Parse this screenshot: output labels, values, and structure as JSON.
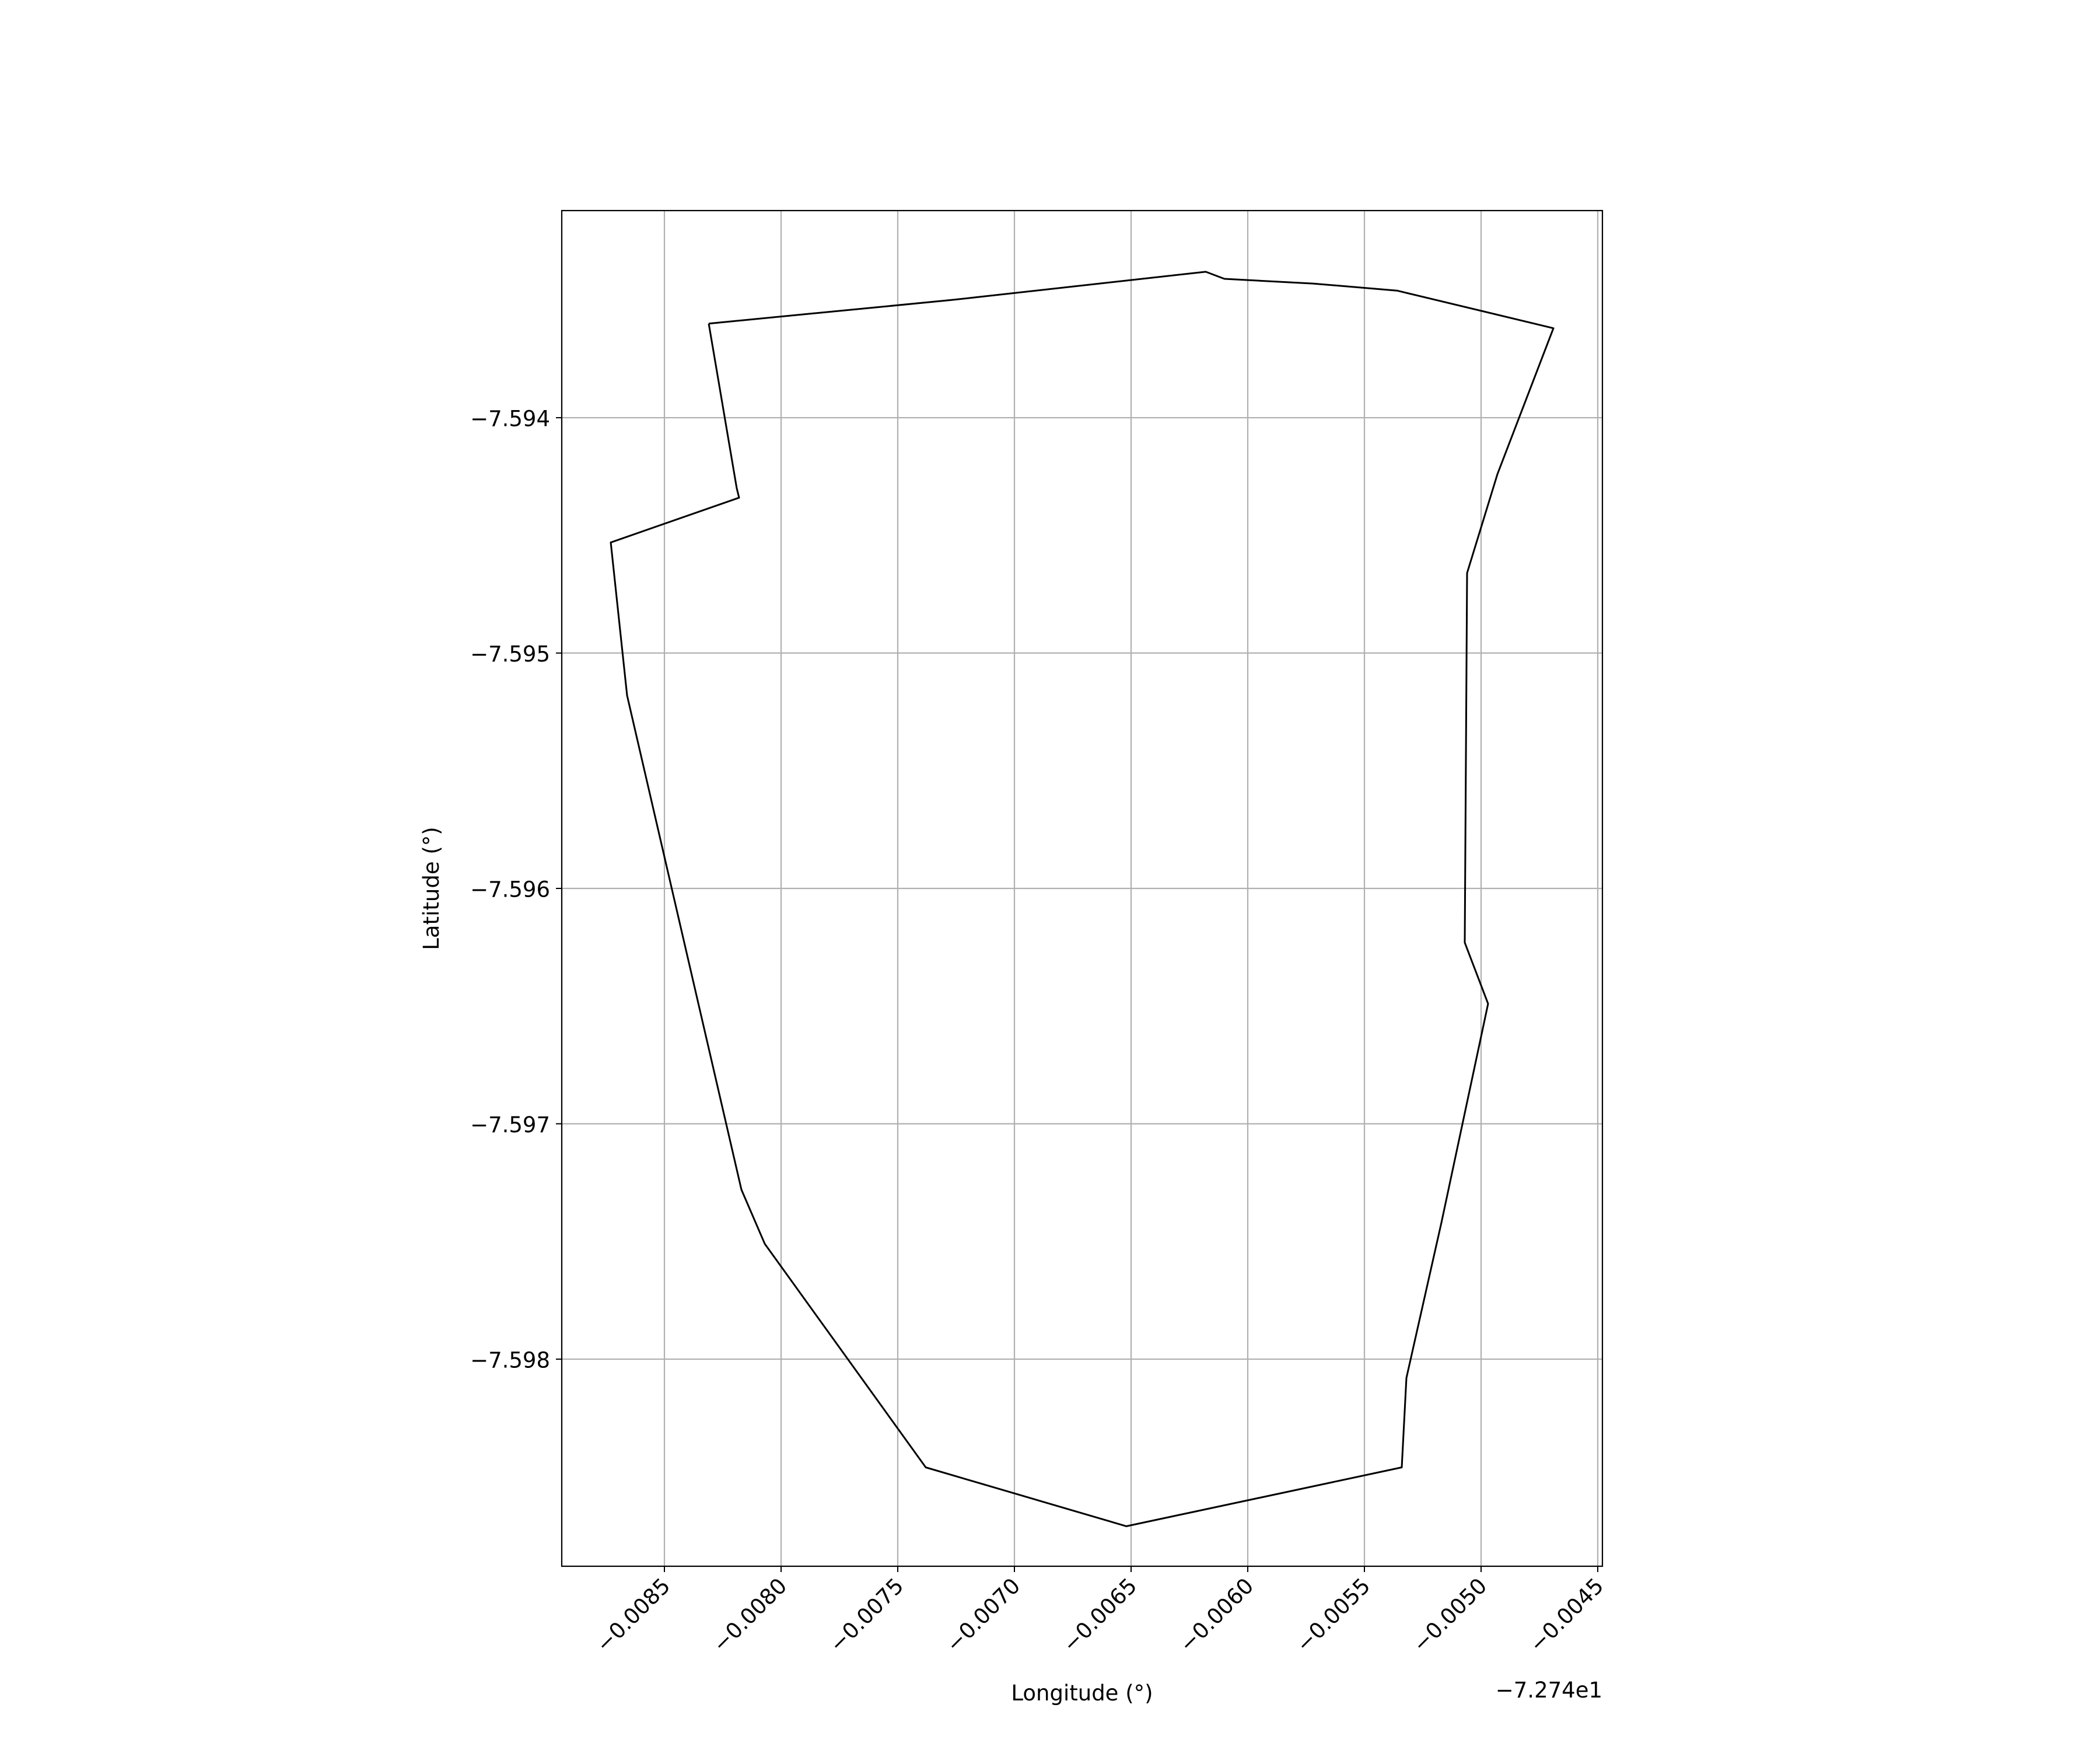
{
  "chart_data": {
    "type": "line",
    "xlabel": "Longitude (°)",
    "ylabel": "Latitude (°)",
    "x_offset_label": "−7.274e1",
    "x_offset": -72.74,
    "xlim": [
      -0.00894,
      -0.00448
    ],
    "ylim": [
      -7.59888,
      -7.59312
    ],
    "x_ticks": [
      -0.0085,
      -0.008,
      -0.0075,
      -0.007,
      -0.0065,
      -0.006,
      -0.0055,
      -0.005,
      -0.0045
    ],
    "x_tick_labels": [
      "−0.0085",
      "−0.0080",
      "−0.0075",
      "−0.0070",
      "−0.0065",
      "−0.0060",
      "−0.0055",
      "−0.0050",
      "−0.0045"
    ],
    "y_ticks": [
      -7.594,
      -7.595,
      -7.596,
      -7.597,
      -7.598
    ],
    "y_tick_labels": [
      "−7.594",
      "−7.595",
      "−7.596",
      "−7.597",
      "−7.598"
    ],
    "grid": true,
    "series": [
      {
        "color": "#000000",
        "x": [
          -0.00831,
          -0.00727,
          -0.00618,
          -0.0061,
          -0.00572,
          -0.00536,
          -0.00469,
          -0.00493,
          -0.00506,
          -0.00507,
          -0.00497,
          -0.00517,
          -0.00532,
          -0.00534,
          -0.00652,
          -0.00738,
          -0.00807,
          -0.00817,
          -0.00866,
          -0.00873,
          -0.00818,
          -0.00819,
          -0.00831
        ],
        "y": [
          -7.5936,
          -7.5935,
          -7.59338,
          -7.59341,
          -7.59343,
          -7.59346,
          -7.59362,
          -7.59424,
          -7.59466,
          -7.59623,
          -7.59649,
          -7.59742,
          -7.59808,
          -7.59846,
          -7.59871,
          -7.59846,
          -7.59751,
          -7.59728,
          -7.59518,
          -7.59453,
          -7.59434,
          -7.5943,
          -7.5936
        ]
      }
    ]
  }
}
